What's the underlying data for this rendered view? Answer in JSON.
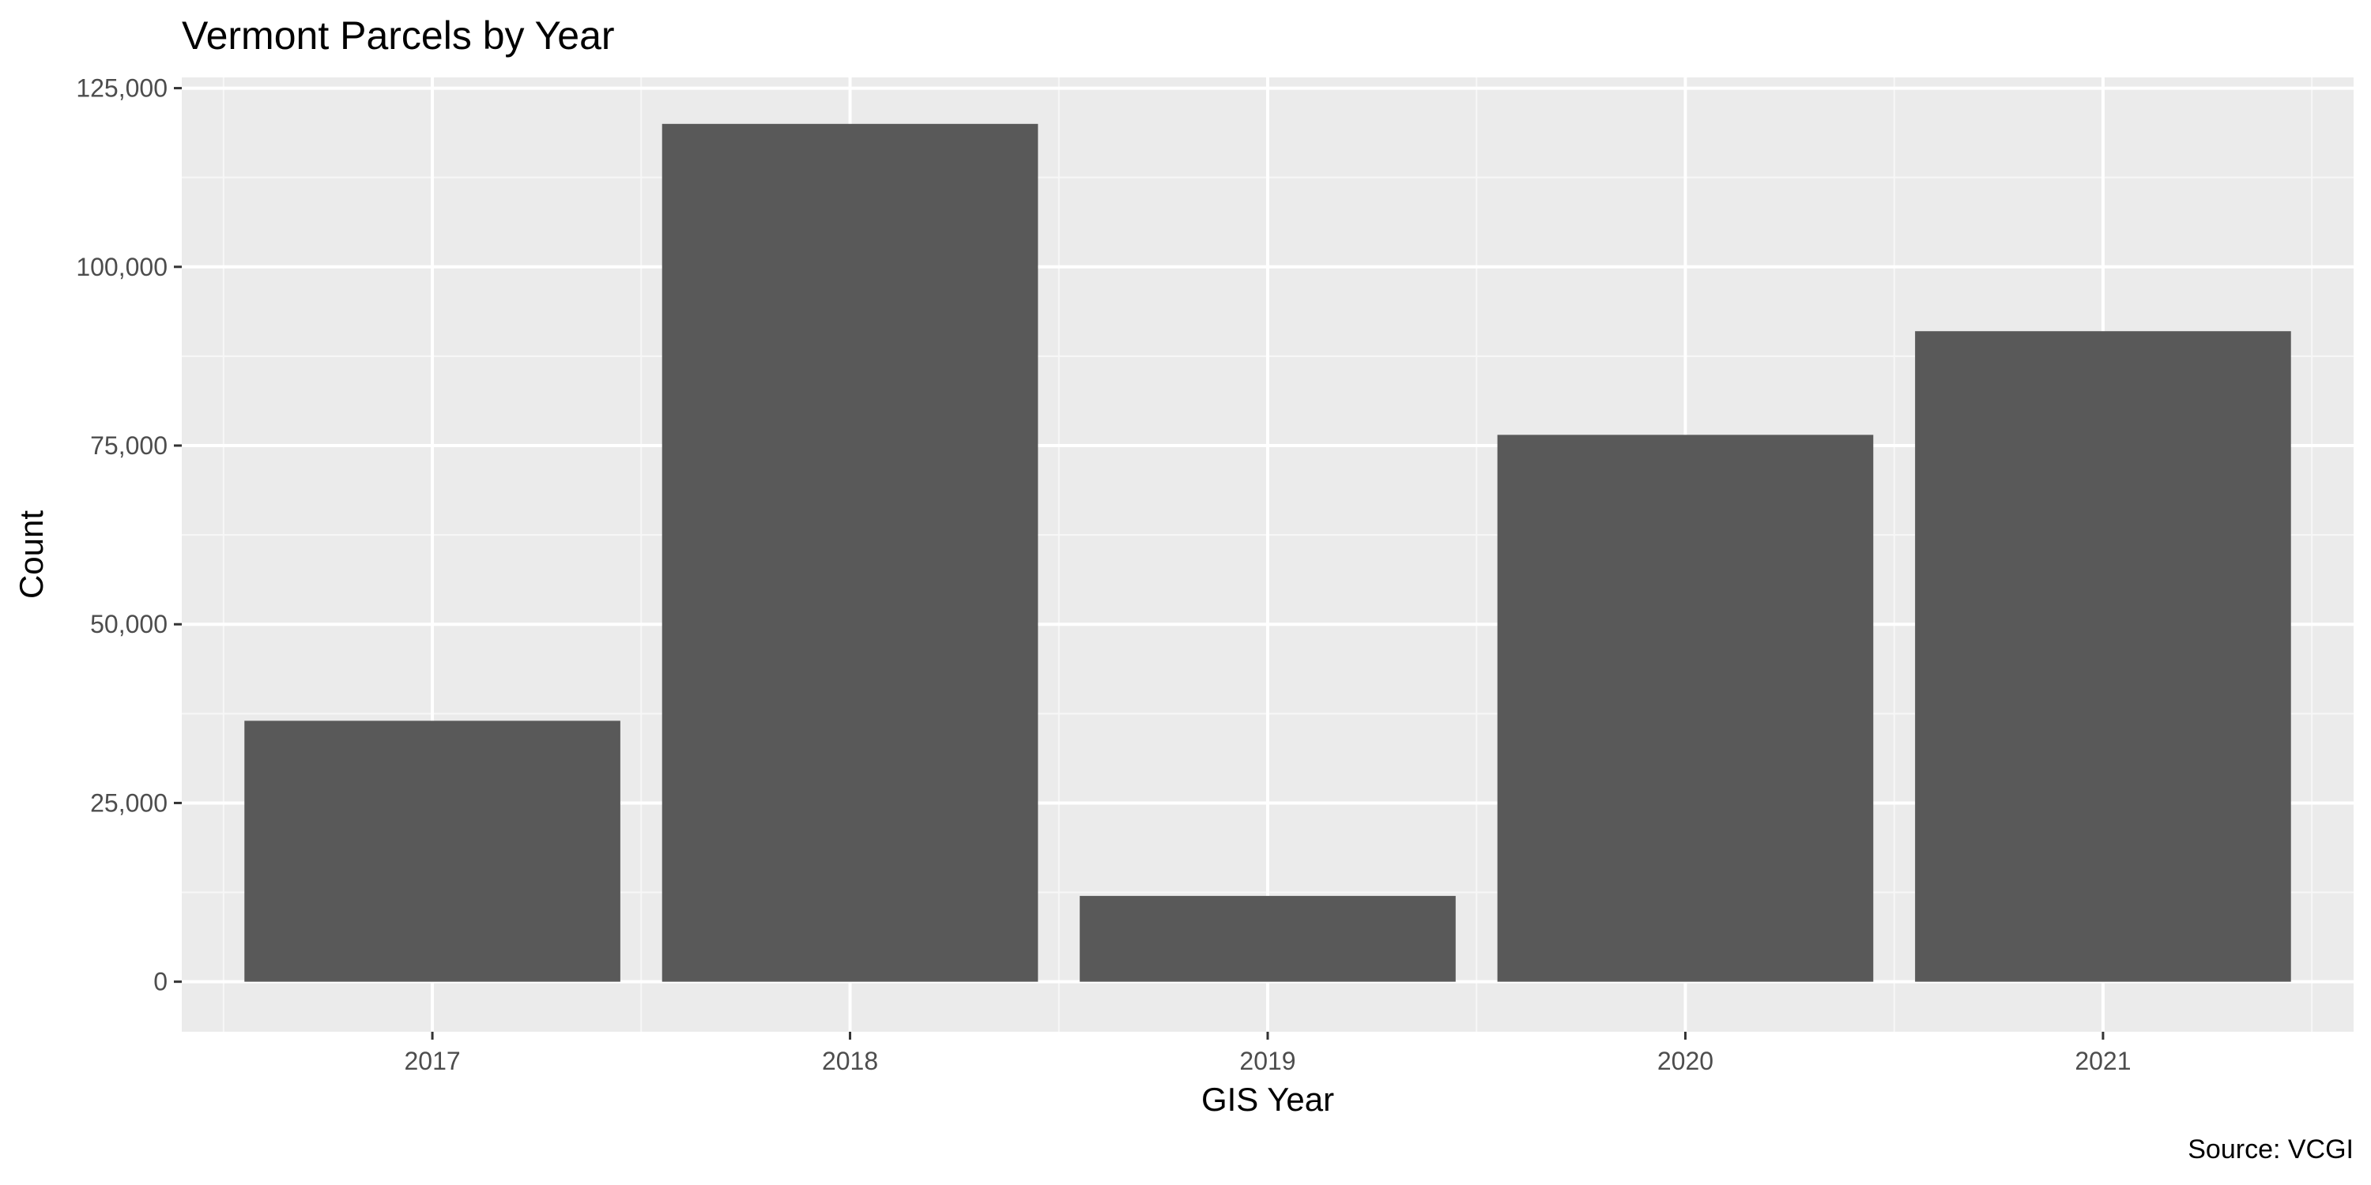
{
  "chart_data": {
    "type": "bar",
    "title": "Vermont Parcels by Year",
    "xlabel": "GIS Year",
    "ylabel": "Count",
    "caption": "Source: VCGI",
    "categories": [
      "2017",
      "2018",
      "2019",
      "2020",
      "2021"
    ],
    "values": [
      36500,
      120000,
      12000,
      76500,
      91000
    ],
    "ylim": [
      -7000,
      126500
    ],
    "yticks": [
      0,
      25000,
      50000,
      75000,
      100000,
      125000
    ],
    "ytick_labels": [
      "0",
      "25,000",
      "50,000",
      "75,000",
      "100,000",
      "125,000"
    ],
    "grid": true,
    "legend": "none",
    "colors": {
      "bar": "#595959",
      "panel": "#ebebeb",
      "grid_major": "#ffffff",
      "grid_minor": "#f7f7f7",
      "tick_text": "#4d4d4d",
      "tick_line": "#333333"
    }
  }
}
